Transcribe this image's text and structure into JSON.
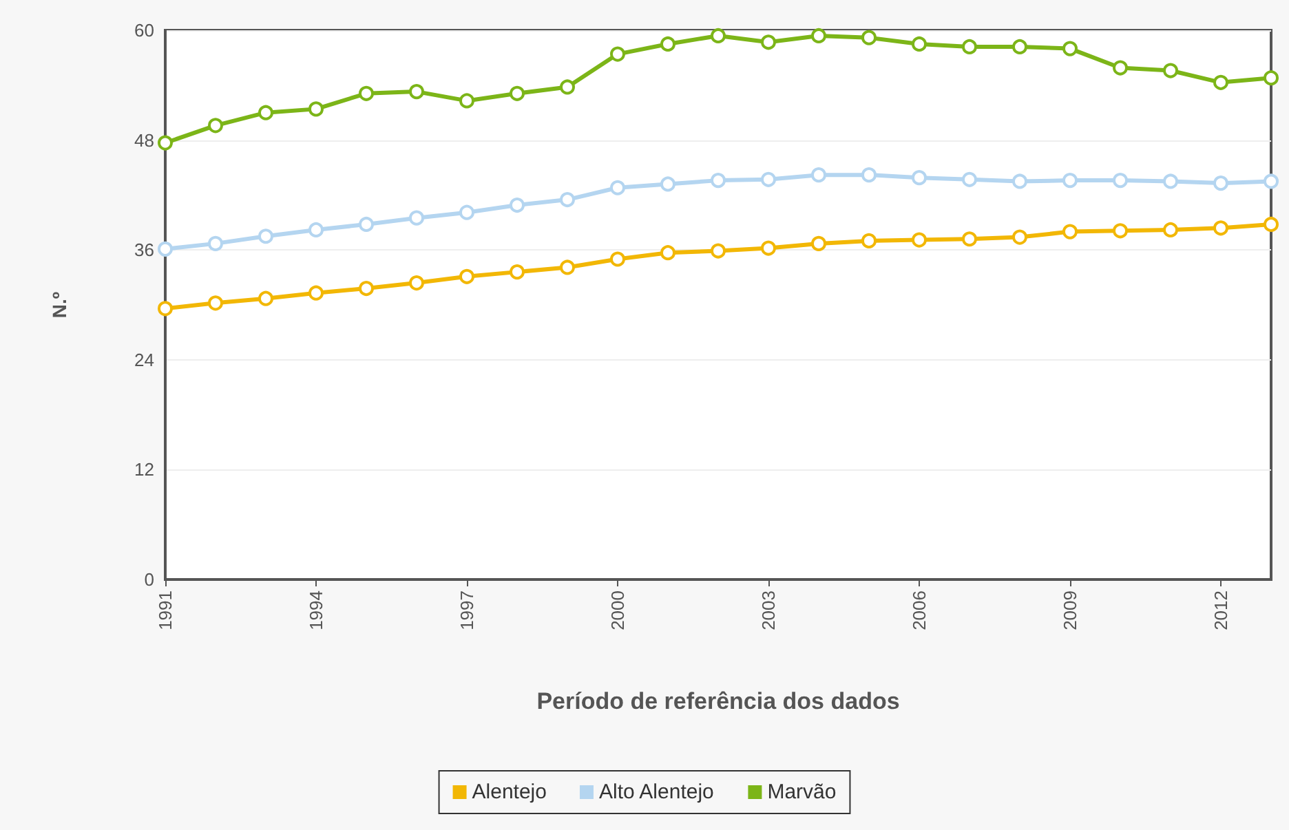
{
  "chart_data": {
    "type": "line",
    "xlabel": "Período de referência dos dados",
    "ylabel": "N.º",
    "x": [
      1991,
      1992,
      1993,
      1994,
      1995,
      1996,
      1997,
      1998,
      1999,
      2000,
      2001,
      2002,
      2003,
      2004,
      2005,
      2006,
      2007,
      2008,
      2009,
      2010,
      2011,
      2012,
      2013
    ],
    "xlim": [
      1991,
      2013
    ],
    "xticks": [
      1991,
      1994,
      1997,
      2000,
      2003,
      2006,
      2009,
      2012
    ],
    "ylim": [
      0,
      60
    ],
    "yticks": [
      0,
      12,
      24,
      36,
      48,
      60
    ],
    "series": [
      {
        "name": "Alentejo",
        "color": "#f2b705",
        "values": [
          29.6,
          30.2,
          30.7,
          31.3,
          31.8,
          32.4,
          33.1,
          33.6,
          34.1,
          35.0,
          35.7,
          35.9,
          36.2,
          36.7,
          37.0,
          37.1,
          37.2,
          37.4,
          38.0,
          38.1,
          38.2,
          38.4,
          38.8
        ]
      },
      {
        "name": "Alto Alentejo",
        "color": "#b4d5f0",
        "values": [
          36.1,
          36.7,
          37.5,
          38.2,
          38.8,
          39.5,
          40.1,
          40.9,
          41.5,
          42.8,
          43.2,
          43.6,
          43.7,
          44.2,
          44.2,
          43.9,
          43.7,
          43.5,
          43.6,
          43.6,
          43.5,
          43.3,
          43.5
        ]
      },
      {
        "name": "Marvão",
        "color": "#7cb518",
        "values": [
          47.7,
          49.6,
          51.0,
          51.4,
          53.1,
          53.3,
          52.3,
          53.1,
          53.8,
          57.4,
          58.5,
          59.4,
          58.7,
          59.4,
          59.2,
          58.5,
          58.2,
          58.2,
          58.0,
          55.9,
          55.6,
          54.3,
          54.8
        ]
      }
    ],
    "grid": "y",
    "legend": "bottom",
    "marker": "circle",
    "line_style": "solid"
  }
}
